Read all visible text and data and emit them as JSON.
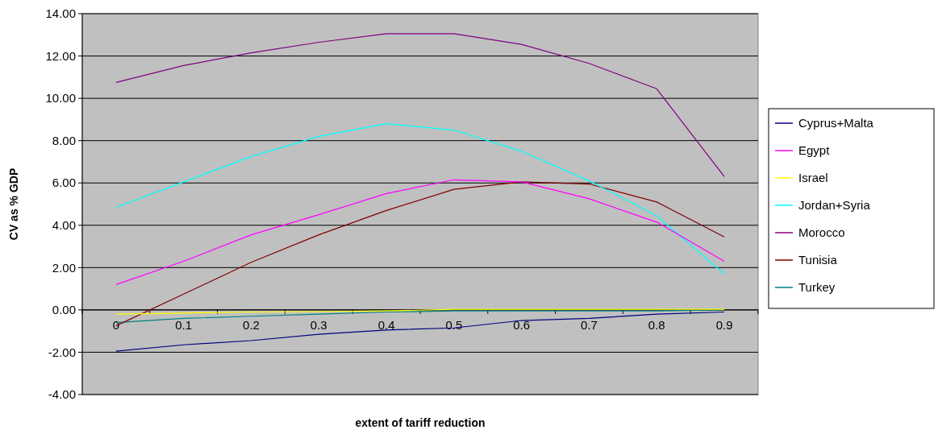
{
  "chart_data": {
    "type": "line",
    "xlabel": "extent of tariff reduction",
    "ylabel": "CV as % GDP",
    "categories": [
      "0",
      "0.1",
      "0.2",
      "0.3",
      "0.4",
      "0.5",
      "0.6",
      "0.7",
      "0.8",
      "0.9"
    ],
    "series": [
      {
        "name": "Cyprus+Malta",
        "color": "#000080",
        "values": [
          -1.95,
          -1.65,
          -1.45,
          -1.15,
          -0.95,
          -0.85,
          -0.5,
          -0.4,
          -0.2,
          -0.1
        ]
      },
      {
        "name": "Egypt",
        "color": "#ff00ff",
        "values": [
          1.2,
          2.3,
          3.55,
          4.5,
          5.5,
          6.15,
          6.05,
          5.25,
          4.15,
          2.3
        ]
      },
      {
        "name": "Israel",
        "color": "#ffff00",
        "values": [
          -0.2,
          -0.15,
          -0.1,
          -0.08,
          -0.05,
          0.03,
          0.03,
          0.03,
          0.03,
          0.03
        ]
      },
      {
        "name": "Jordan+Syria",
        "color": "#00ffff",
        "values": [
          4.85,
          6.05,
          7.25,
          8.2,
          8.8,
          8.5,
          7.5,
          6.1,
          4.45,
          1.7
        ]
      },
      {
        "name": "Morocco",
        "color": "#800080",
        "values": [
          10.75,
          11.55,
          12.15,
          12.65,
          13.05,
          13.05,
          12.55,
          11.65,
          10.45,
          6.3
        ]
      },
      {
        "name": "Tunisia",
        "color": "#800000",
        "values": [
          -0.75,
          0.75,
          2.25,
          3.55,
          4.7,
          5.7,
          6.05,
          5.95,
          5.1,
          3.45
        ]
      },
      {
        "name": "Turkey",
        "color": "#008080",
        "values": [
          -0.6,
          -0.4,
          -0.3,
          -0.2,
          -0.1,
          -0.05,
          -0.05,
          -0.05,
          -0.05,
          0
        ]
      }
    ],
    "ylim": [
      -4,
      14
    ],
    "yticks": [
      {
        "value": -4,
        "label": "-4.00"
      },
      {
        "value": -2,
        "label": "-2.00"
      },
      {
        "value": 0,
        "label": "0.00"
      },
      {
        "value": 2,
        "label": "2.00"
      },
      {
        "value": 4,
        "label": "4.00"
      },
      {
        "value": 6,
        "label": "6.00"
      },
      {
        "value": 8,
        "label": "8.00"
      },
      {
        "value": 10,
        "label": "10.00"
      },
      {
        "value": 12,
        "label": "12.00"
      },
      {
        "value": 14,
        "label": "14.00"
      }
    ],
    "grid": "y",
    "legend": "right",
    "marker": "none"
  }
}
